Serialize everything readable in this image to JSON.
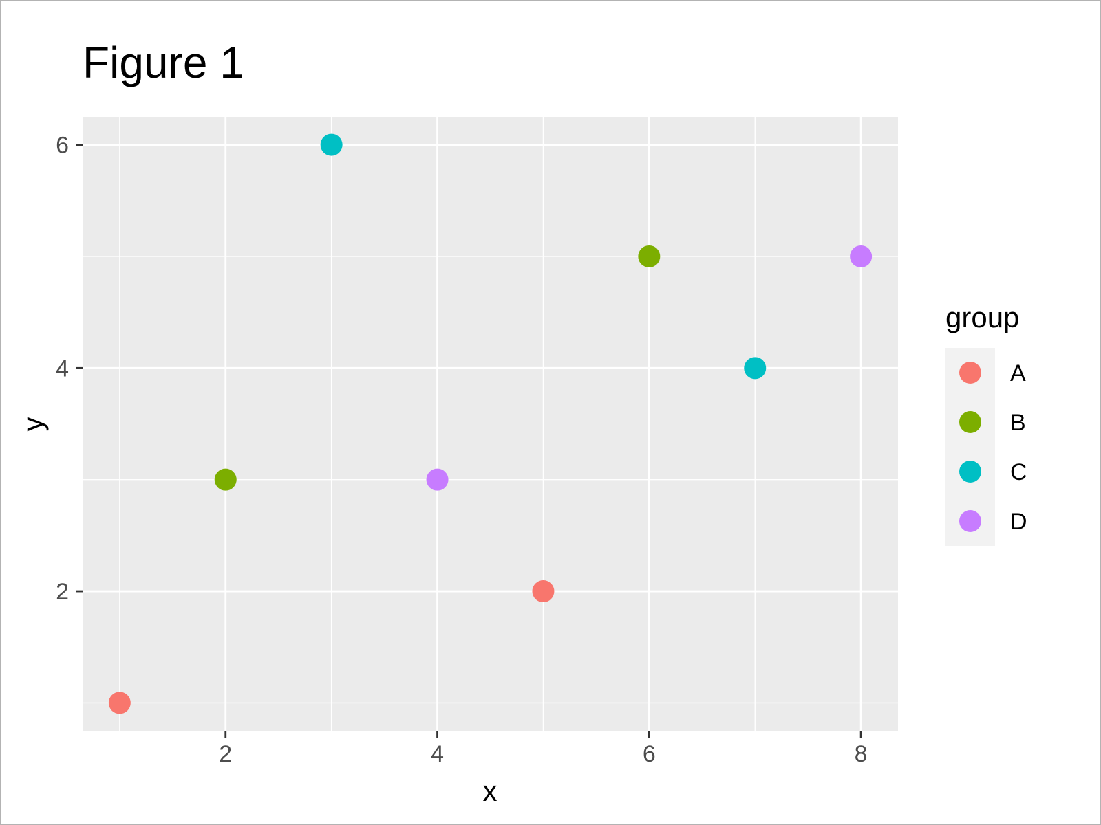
{
  "chart_data": {
    "type": "scatter",
    "title": "Figure 1",
    "xlabel": "x",
    "ylabel": "y",
    "xlim": [
      0.65,
      8.35
    ],
    "ylim": [
      0.75,
      6.25
    ],
    "xticks": [
      2,
      4,
      6,
      8
    ],
    "yticks": [
      2,
      4,
      6
    ],
    "grid": true,
    "legend": {
      "title": "group",
      "placement": "right"
    },
    "series": [
      {
        "name": "A",
        "color": "#F8766D",
        "points": [
          {
            "x": 1,
            "y": 1
          },
          {
            "x": 5,
            "y": 2
          }
        ]
      },
      {
        "name": "B",
        "color": "#7CAE00",
        "points": [
          {
            "x": 2,
            "y": 3
          },
          {
            "x": 6,
            "y": 5
          }
        ]
      },
      {
        "name": "C",
        "color": "#00BFC4",
        "points": [
          {
            "x": 3,
            "y": 6
          },
          {
            "x": 7,
            "y": 4
          }
        ]
      },
      {
        "name": "D",
        "color": "#C77CFF",
        "points": [
          {
            "x": 4,
            "y": 3
          },
          {
            "x": 8,
            "y": 5
          }
        ]
      }
    ]
  }
}
